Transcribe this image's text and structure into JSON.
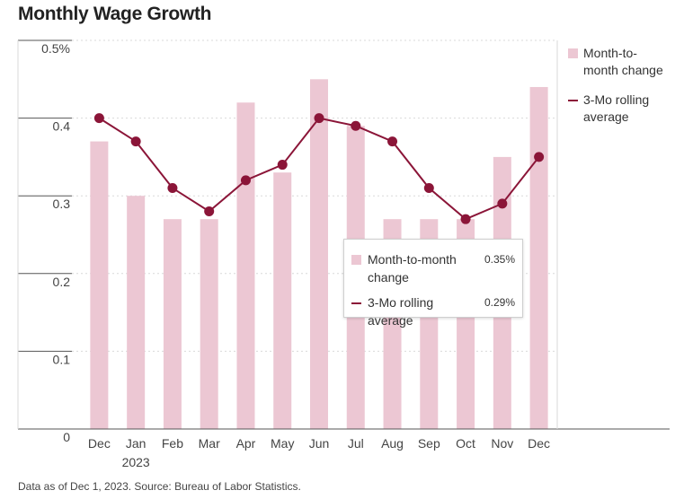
{
  "title": "Monthly Wage Growth",
  "footnote": "Data as of Dec 1, 2023. Source: Bureau of Labor Statistics.",
  "colors": {
    "bar": "#ecc7d3",
    "line": "#8b1538",
    "grid": "#d9d9d9",
    "axis": "#555555"
  },
  "legend": {
    "items": [
      {
        "label": "Month-to-month change"
      },
      {
        "label": "3-Mo rolling average"
      }
    ]
  },
  "tooltip": {
    "rows": [
      {
        "label": "Month-to-month change",
        "value": "0.35%"
      },
      {
        "label": "3-Mo rolling average",
        "value": "0.29%"
      }
    ]
  },
  "chart_data": {
    "type": "bar",
    "title": "Monthly Wage Growth",
    "categories": [
      "Dec",
      "Jan",
      "Feb",
      "Mar",
      "Apr",
      "May",
      "Jun",
      "Jul",
      "Aug",
      "Sep",
      "Oct",
      "Nov",
      "Dec"
    ],
    "category_sublabels": [
      "",
      "2023",
      "",
      "",
      "",
      "",
      "",
      "",
      "",
      "",
      "",
      "",
      ""
    ],
    "series": [
      {
        "name": "Month-to-month change",
        "type": "bar",
        "values": [
          0.37,
          0.3,
          0.27,
          0.27,
          0.42,
          0.33,
          0.45,
          0.39,
          0.27,
          0.27,
          0.27,
          0.35,
          0.44
        ]
      },
      {
        "name": "3-Mo rolling average",
        "type": "line",
        "values": [
          0.4,
          0.37,
          0.31,
          0.28,
          0.32,
          0.34,
          0.4,
          0.39,
          0.37,
          0.31,
          0.27,
          0.29,
          0.35
        ]
      }
    ],
    "yticks": [
      "0",
      "0.1",
      "0.2",
      "0.3",
      "0.4",
      "0.5%"
    ],
    "ylim": [
      0,
      0.5
    ],
    "grid": true,
    "legend_position": "right"
  }
}
